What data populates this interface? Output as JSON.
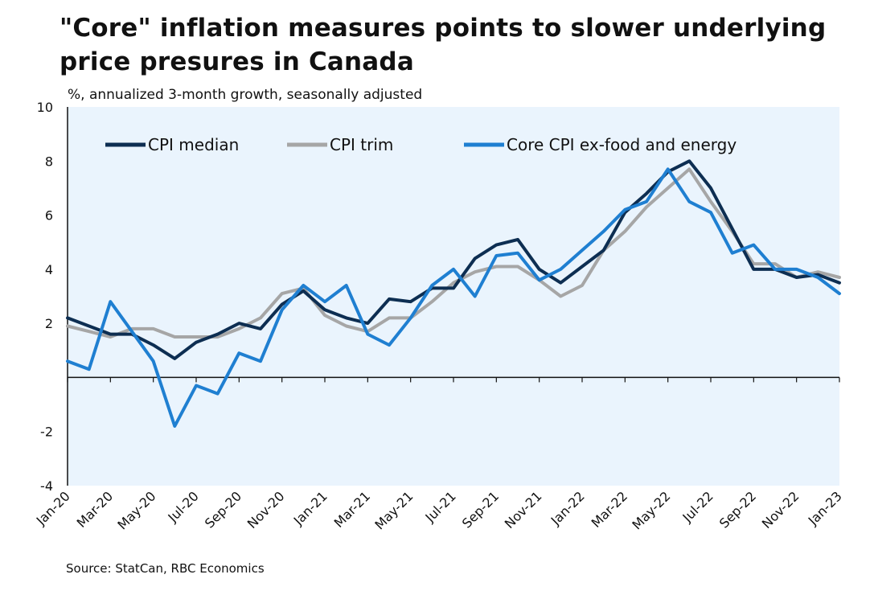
{
  "title": "\"Core\" inflation measures points to slower underlying price presures in Canada",
  "subtitle": "%, annualized 3-month growth, seasonally adjusted",
  "source": "Source: StatCan, RBC Economics",
  "chart_data": {
    "type": "line",
    "ylim": [
      -4,
      10
    ],
    "yticks": [
      -4,
      -2,
      2,
      4,
      6,
      8,
      10
    ],
    "grid": false,
    "legend_position": "top-left",
    "x": [
      "Jan-20",
      "Feb-20",
      "Mar-20",
      "Apr-20",
      "May-20",
      "Jun-20",
      "Jul-20",
      "Aug-20",
      "Sep-20",
      "Oct-20",
      "Nov-20",
      "Dec-20",
      "Jan-21",
      "Feb-21",
      "Mar-21",
      "Apr-21",
      "May-21",
      "Jun-21",
      "Jul-21",
      "Aug-21",
      "Sep-21",
      "Oct-21",
      "Nov-21",
      "Dec-21",
      "Jan-22",
      "Feb-22",
      "Mar-22",
      "Apr-22",
      "May-22",
      "Jun-22",
      "Jul-22",
      "Aug-22",
      "Sep-22",
      "Oct-22",
      "Nov-22",
      "Dec-22",
      "Jan-23"
    ],
    "x_tick_labels": [
      "Jan-20",
      "Mar-20",
      "May-20",
      "Jul-20",
      "Sep-20",
      "Nov-20",
      "Jan-21",
      "Mar-21",
      "May-21",
      "Jul-21",
      "Sep-21",
      "Nov-21",
      "Jan-22",
      "Mar-22",
      "May-22",
      "Jul-22",
      "Sep-22",
      "Nov-22",
      "Jan-23"
    ],
    "series": [
      {
        "name": "CPI median",
        "color": "#0d2e52",
        "width": 4,
        "values": [
          2.2,
          1.9,
          1.6,
          1.6,
          1.2,
          0.7,
          1.3,
          1.6,
          2.0,
          1.8,
          2.7,
          3.2,
          2.5,
          2.2,
          2.0,
          2.9,
          2.8,
          3.3,
          3.3,
          4.4,
          4.9,
          5.1,
          4.0,
          3.5,
          4.1,
          4.7,
          6.1,
          6.8,
          7.6,
          8.0,
          7.0,
          5.5,
          4.0,
          4.0,
          3.7,
          3.8,
          3.5
        ]
      },
      {
        "name": "CPI trim",
        "color": "#a6a6a6",
        "width": 4,
        "values": [
          1.9,
          1.7,
          1.5,
          1.8,
          1.8,
          1.5,
          1.5,
          1.5,
          1.8,
          2.2,
          3.1,
          3.3,
          2.3,
          1.9,
          1.7,
          2.2,
          2.2,
          2.8,
          3.5,
          3.9,
          4.1,
          4.1,
          3.6,
          3.0,
          3.4,
          4.7,
          5.4,
          6.3,
          7.0,
          7.7,
          6.5,
          5.4,
          4.2,
          4.2,
          3.7,
          3.9,
          3.7
        ]
      },
      {
        "name": "Core CPI ex-food and energy",
        "color": "#1f7fd1",
        "width": 4,
        "values": [
          0.6,
          0.3,
          2.8,
          1.7,
          0.6,
          -1.8,
          -0.3,
          -0.6,
          0.9,
          0.6,
          2.5,
          3.4,
          2.8,
          3.4,
          1.6,
          1.2,
          2.2,
          3.4,
          4.0,
          3.0,
          4.5,
          4.6,
          3.6,
          4.0,
          4.7,
          5.4,
          6.2,
          6.5,
          7.7,
          6.5,
          6.1,
          4.6,
          4.9,
          4.0,
          4.0,
          3.7,
          3.1
        ]
      }
    ]
  }
}
